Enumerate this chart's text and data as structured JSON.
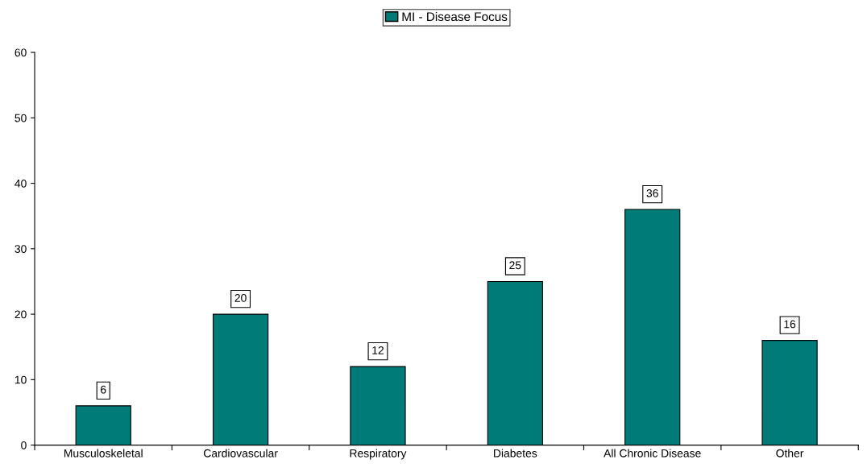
{
  "chart_data": {
    "type": "bar",
    "categories": [
      "Musculoskeletal",
      "Cardiovascular",
      "Respiratory",
      "Diabetes",
      "All Chronic Disease",
      "Other"
    ],
    "series": [
      {
        "name": "MI - Disease Focus",
        "color": "#007b78",
        "values": [
          6,
          20,
          12,
          25,
          36,
          16
        ]
      }
    ],
    "ylim": [
      0,
      60
    ],
    "yticks": [
      0,
      10,
      20,
      30,
      40,
      50,
      60
    ],
    "data_labels": true,
    "legend": "top",
    "grid": false
  }
}
